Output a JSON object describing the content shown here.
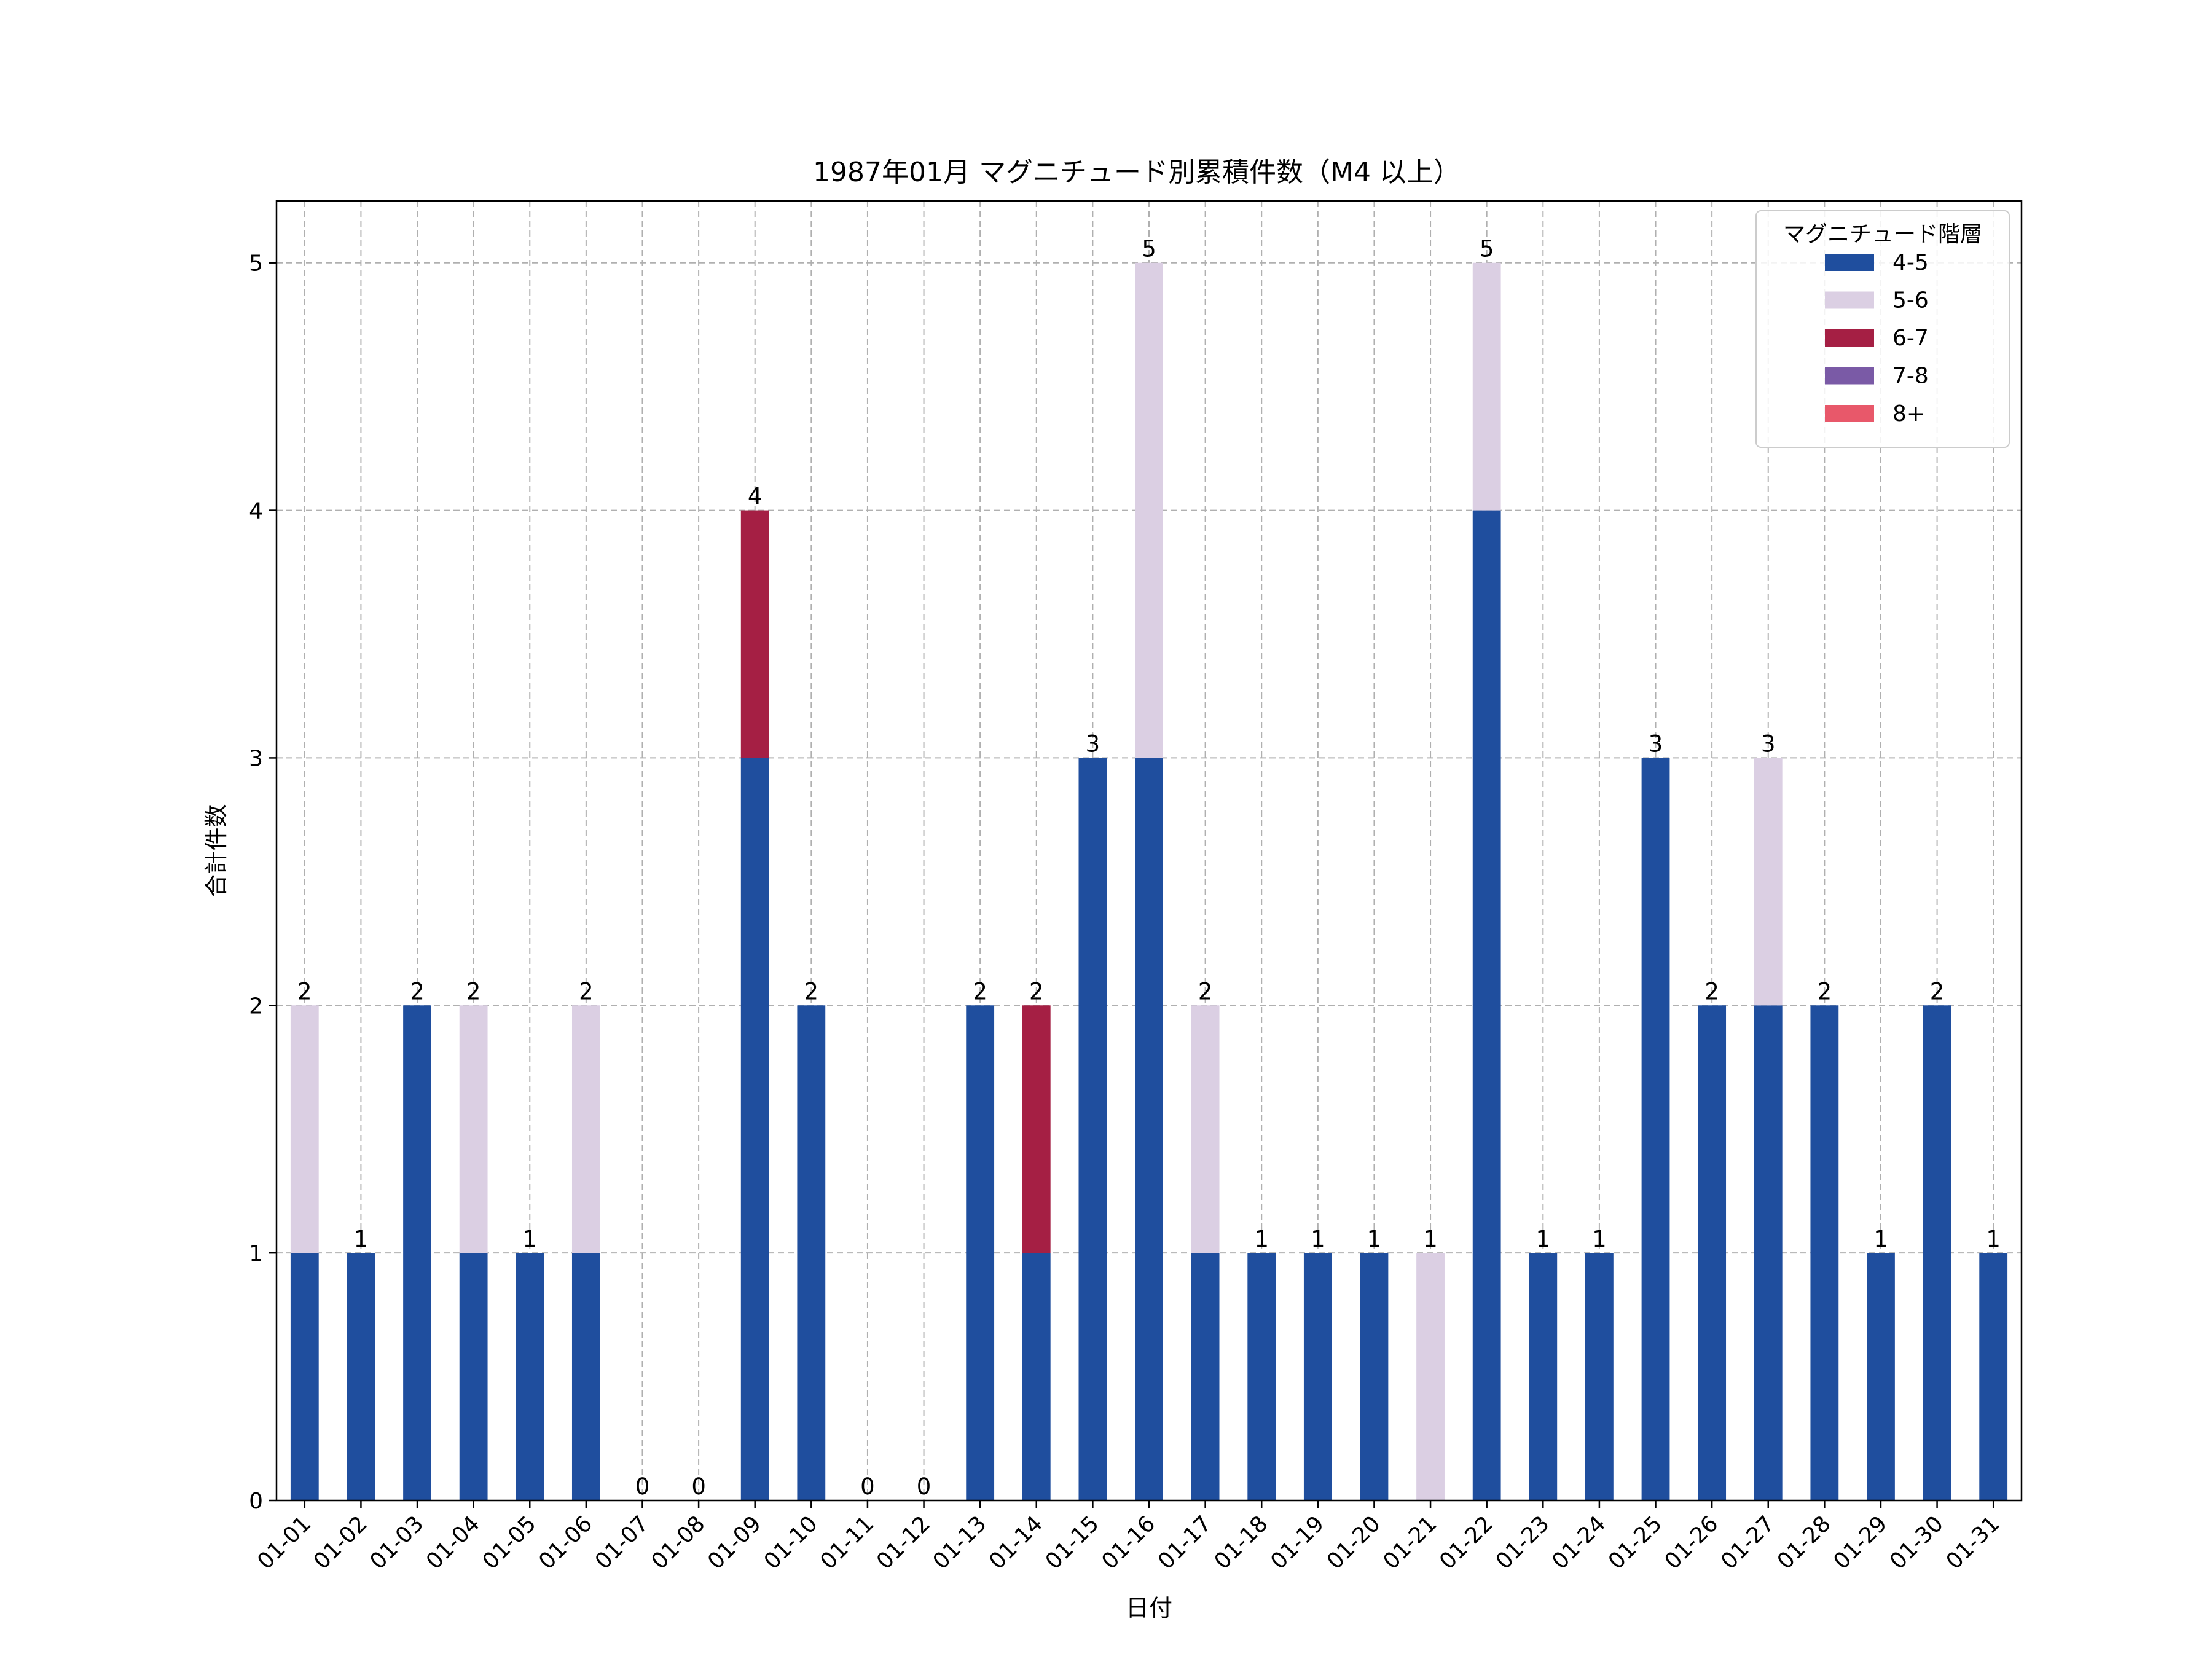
{
  "chart_data": {
    "type": "bar",
    "stacked": true,
    "title": "1987年01月 マグニチュード別累積件数（M4 以上）",
    "xlabel": "日付",
    "ylabel": "合計件数",
    "ylim": [
      0,
      5.25
    ],
    "yticks": [
      0,
      1,
      2,
      3,
      4,
      5
    ],
    "grid": true,
    "legend_title": "マグニチュード階層",
    "legend_position": "top-right",
    "categories": [
      "01-01",
      "01-02",
      "01-03",
      "01-04",
      "01-05",
      "01-06",
      "01-07",
      "01-08",
      "01-09",
      "01-10",
      "01-11",
      "01-12",
      "01-13",
      "01-14",
      "01-15",
      "01-16",
      "01-17",
      "01-18",
      "01-19",
      "01-20",
      "01-21",
      "01-22",
      "01-23",
      "01-24",
      "01-25",
      "01-26",
      "01-27",
      "01-28",
      "01-29",
      "01-30",
      "01-31"
    ],
    "series": [
      {
        "name": "4-5",
        "color": "#1f4e9e",
        "values": [
          1,
          1,
          2,
          1,
          1,
          1,
          0,
          0,
          3,
          2,
          0,
          0,
          2,
          1,
          3,
          3,
          1,
          1,
          1,
          1,
          0,
          4,
          1,
          1,
          3,
          2,
          2,
          2,
          1,
          2,
          1
        ]
      },
      {
        "name": "5-6",
        "color": "#dbcfe3",
        "values": [
          1,
          0,
          0,
          1,
          0,
          1,
          0,
          0,
          0,
          0,
          0,
          0,
          0,
          0,
          0,
          2,
          1,
          0,
          0,
          0,
          1,
          1,
          0,
          0,
          0,
          0,
          1,
          0,
          0,
          0,
          0
        ]
      },
      {
        "name": "6-7",
        "color": "#a51f44",
        "values": [
          0,
          0,
          0,
          0,
          0,
          0,
          0,
          0,
          1,
          0,
          0,
          0,
          0,
          1,
          0,
          0,
          0,
          0,
          0,
          0,
          0,
          0,
          0,
          0,
          0,
          0,
          0,
          0,
          0,
          0,
          0
        ]
      },
      {
        "name": "7-8",
        "color": "#7a5aa6",
        "values": [
          0,
          0,
          0,
          0,
          0,
          0,
          0,
          0,
          0,
          0,
          0,
          0,
          0,
          0,
          0,
          0,
          0,
          0,
          0,
          0,
          0,
          0,
          0,
          0,
          0,
          0,
          0,
          0,
          0,
          0,
          0
        ]
      },
      {
        "name": "8+",
        "color": "#e8586a",
        "values": [
          0,
          0,
          0,
          0,
          0,
          0,
          0,
          0,
          0,
          0,
          0,
          0,
          0,
          0,
          0,
          0,
          0,
          0,
          0,
          0,
          0,
          0,
          0,
          0,
          0,
          0,
          0,
          0,
          0,
          0,
          0
        ]
      }
    ],
    "totals": [
      2,
      1,
      2,
      2,
      1,
      2,
      0,
      0,
      4,
      2,
      0,
      0,
      2,
      2,
      3,
      5,
      2,
      1,
      1,
      1,
      1,
      5,
      1,
      1,
      3,
      2,
      3,
      2,
      1,
      2,
      1
    ]
  }
}
